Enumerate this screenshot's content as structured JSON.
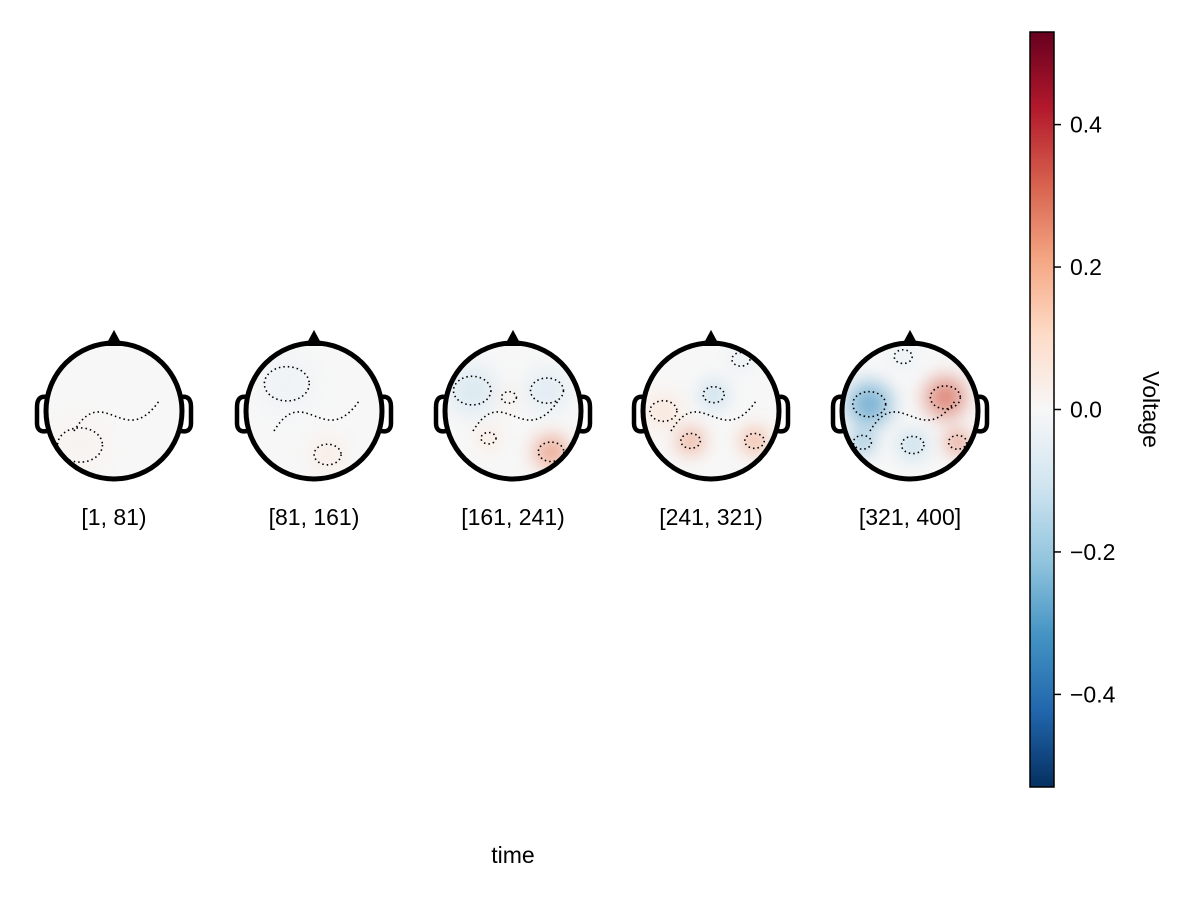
{
  "chart_data": {
    "type": "heatmap",
    "title": "",
    "xlabel": "time",
    "colorbar": {
      "label": "Voltage",
      "colormap": "RdBu_r",
      "range": [
        -0.53,
        0.53
      ],
      "ticks": [
        0.4,
        0.2,
        0.0,
        -0.2,
        -0.4
      ],
      "tick_labels": [
        "0.4",
        "0.2",
        "0.0",
        "−0.2",
        "−0.4"
      ],
      "colors": {
        "min": "#053061",
        "low": "#4393c3",
        "mid": "#f7f7f7",
        "high": "#d6604d",
        "max": "#67001f"
      }
    },
    "topoplots": [
      {
        "label": "[1, 81)",
        "sources": [
          {
            "pos": [
              0.25,
              0.75
            ],
            "voltage": 0.02,
            "spread": 0.3
          }
        ]
      },
      {
        "label": "[81, 161)",
        "sources": [
          {
            "pos": [
              0.3,
              0.3
            ],
            "voltage": -0.03,
            "spread": 0.3
          },
          {
            "pos": [
              0.6,
              0.82
            ],
            "voltage": 0.05,
            "spread": 0.18
          }
        ]
      },
      {
        "label": "[161, 241)",
        "sources": [
          {
            "pos": [
              0.2,
              0.35
            ],
            "voltage": -0.1,
            "spread": 0.25
          },
          {
            "pos": [
              0.75,
              0.35
            ],
            "voltage": -0.08,
            "spread": 0.22
          },
          {
            "pos": [
              0.78,
              0.8
            ],
            "voltage": 0.25,
            "spread": 0.17
          },
          {
            "pos": [
              0.32,
              0.7
            ],
            "voltage": 0.1,
            "spread": 0.1
          },
          {
            "pos": [
              0.47,
              0.4
            ],
            "voltage": 0.05,
            "spread": 0.1
          }
        ]
      },
      {
        "label": "[241, 321)",
        "sources": [
          {
            "pos": [
              0.52,
              0.38
            ],
            "voltage": -0.15,
            "spread": 0.14
          },
          {
            "pos": [
              0.72,
              0.12
            ],
            "voltage": -0.06,
            "spread": 0.12
          },
          {
            "pos": [
              0.35,
              0.72
            ],
            "voltage": 0.24,
            "spread": 0.13
          },
          {
            "pos": [
              0.82,
              0.72
            ],
            "voltage": 0.22,
            "spread": 0.13
          },
          {
            "pos": [
              0.15,
              0.5
            ],
            "voltage": 0.08,
            "spread": 0.18
          }
        ]
      },
      {
        "label": "[321, 400]",
        "sources": [
          {
            "pos": [
              0.2,
              0.45
            ],
            "voltage": -0.3,
            "spread": 0.22
          },
          {
            "pos": [
              0.15,
              0.73
            ],
            "voltage": -0.25,
            "spread": 0.12
          },
          {
            "pos": [
              0.52,
              0.75
            ],
            "voltage": -0.15,
            "spread": 0.15
          },
          {
            "pos": [
              0.45,
              0.1
            ],
            "voltage": -0.06,
            "spread": 0.12
          },
          {
            "pos": [
              0.76,
              0.4
            ],
            "voltage": 0.32,
            "spread": 0.2
          },
          {
            "pos": [
              0.85,
              0.73
            ],
            "voltage": 0.28,
            "spread": 0.12
          }
        ]
      }
    ]
  }
}
